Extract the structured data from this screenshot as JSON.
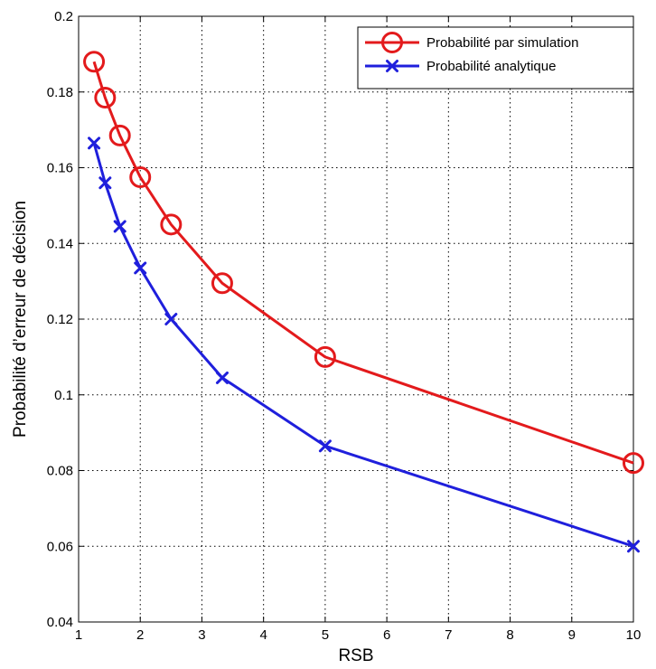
{
  "chart_data": {
    "type": "line",
    "title": "",
    "xlabel": "RSB",
    "ylabel": "Probabilité d’erreur de décision",
    "xlim": [
      1,
      10
    ],
    "ylim": [
      0.04,
      0.2
    ],
    "xticks": [
      "1",
      "2",
      "3",
      "4",
      "5",
      "6",
      "7",
      "8",
      "9",
      "10"
    ],
    "yticks": [
      "0.04",
      "0.06",
      "0.08",
      "0.1",
      "0.12",
      "0.14",
      "0.16",
      "0.18",
      "0.2"
    ],
    "grid": true,
    "legend_position": "top-right",
    "series": [
      {
        "name": "Probabilité par simulation",
        "color": "#e31a1c",
        "marker": "circle",
        "x": [
          1.25,
          1.43,
          1.67,
          2.0,
          2.5,
          3.33,
          5.0,
          10.0
        ],
        "y": [
          0.188,
          0.1785,
          0.1685,
          0.1575,
          0.145,
          0.1295,
          0.11,
          0.082
        ]
      },
      {
        "name": "Probabilité analytique",
        "color": "#1f1fdc",
        "marker": "x",
        "x": [
          1.25,
          1.43,
          1.67,
          2.0,
          2.5,
          3.33,
          5.0,
          10.0
        ],
        "y": [
          0.1665,
          0.156,
          0.1445,
          0.1335,
          0.12,
          0.1045,
          0.0865,
          0.06
        ]
      }
    ]
  }
}
